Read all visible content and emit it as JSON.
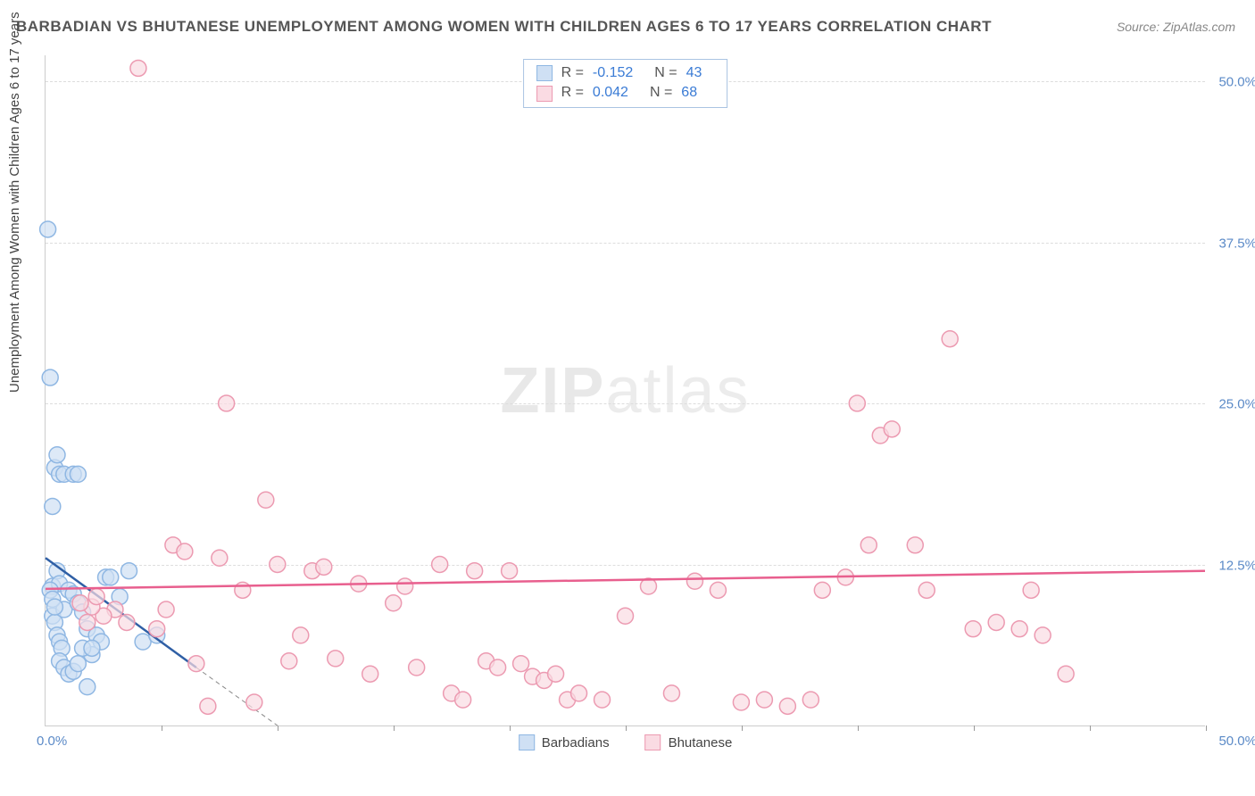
{
  "title": "BARBADIAN VS BHUTANESE UNEMPLOYMENT AMONG WOMEN WITH CHILDREN AGES 6 TO 17 YEARS CORRELATION CHART",
  "source": "Source: ZipAtlas.com",
  "ylabel": "Unemployment Among Women with Children Ages 6 to 17 years",
  "watermark_a": "ZIP",
  "watermark_b": "atlas",
  "chart": {
    "type": "scatter",
    "xlim": [
      0,
      50
    ],
    "ylim": [
      0,
      52
    ],
    "xticks_minor": [
      5,
      10,
      15,
      20,
      25,
      30,
      35,
      40,
      45,
      50
    ],
    "xtick_left": "0.0%",
    "xtick_right": "50.0%",
    "yticks": [
      {
        "v": 12.5,
        "label": "12.5%"
      },
      {
        "v": 25.0,
        "label": "25.0%"
      },
      {
        "v": 37.5,
        "label": "37.5%"
      },
      {
        "v": 50.0,
        "label": "50.0%"
      }
    ],
    "marker_radius": 9,
    "marker_stroke_width": 1.5,
    "trend_line_width": 2.5,
    "series": [
      {
        "name": "Barbadians",
        "fill": "#cfe0f4",
        "stroke": "#8fb7e3",
        "line_color": "#2f5fa5",
        "R": "-0.152",
        "N": "43",
        "trend": {
          "x1": 0,
          "y1": 13.0,
          "x2": 6.5,
          "y2": 4.5
        },
        "trend_ext": {
          "x1": 6.5,
          "y1": 4.5,
          "x2": 10.0,
          "y2": 0.0
        },
        "points": [
          [
            0.1,
            38.5
          ],
          [
            0.2,
            27.0
          ],
          [
            0.3,
            17.0
          ],
          [
            0.3,
            10.8
          ],
          [
            0.5,
            12.0
          ],
          [
            0.6,
            11.0
          ],
          [
            0.4,
            20.0
          ],
          [
            0.5,
            21.0
          ],
          [
            0.6,
            19.5
          ],
          [
            0.8,
            19.5
          ],
          [
            1.2,
            19.5
          ],
          [
            1.4,
            19.5
          ],
          [
            0.3,
            8.5
          ],
          [
            0.4,
            8.0
          ],
          [
            0.5,
            7.0
          ],
          [
            0.6,
            6.5
          ],
          [
            0.7,
            6.0
          ],
          [
            0.8,
            9.0
          ],
          [
            1.0,
            10.5
          ],
          [
            1.2,
            10.2
          ],
          [
            1.4,
            9.5
          ],
          [
            1.6,
            8.8
          ],
          [
            1.8,
            7.5
          ],
          [
            2.0,
            5.5
          ],
          [
            0.6,
            5.0
          ],
          [
            0.8,
            4.5
          ],
          [
            1.0,
            4.0
          ],
          [
            1.2,
            4.2
          ],
          [
            1.4,
            4.8
          ],
          [
            1.6,
            6.0
          ],
          [
            2.2,
            7.0
          ],
          [
            2.4,
            6.5
          ],
          [
            2.6,
            11.5
          ],
          [
            2.8,
            11.5
          ],
          [
            3.2,
            10.0
          ],
          [
            3.6,
            12.0
          ],
          [
            0.2,
            10.5
          ],
          [
            0.3,
            9.8
          ],
          [
            0.4,
            9.2
          ],
          [
            1.8,
            3.0
          ],
          [
            2.0,
            6.0
          ],
          [
            4.2,
            6.5
          ],
          [
            4.8,
            7.0
          ]
        ]
      },
      {
        "name": "Bhutanese",
        "fill": "#fadbe3",
        "stroke": "#ec9ab1",
        "line_color": "#e85f8e",
        "R": "0.042",
        "N": "68",
        "trend": {
          "x1": 0,
          "y1": 10.6,
          "x2": 50,
          "y2": 12.0
        },
        "points": [
          [
            4.0,
            51.0
          ],
          [
            5.5,
            14.0
          ],
          [
            6.0,
            13.5
          ],
          [
            6.5,
            4.8
          ],
          [
            7.0,
            1.5
          ],
          [
            7.5,
            13.0
          ],
          [
            7.8,
            25.0
          ],
          [
            8.5,
            10.5
          ],
          [
            9.0,
            1.8
          ],
          [
            9.5,
            17.5
          ],
          [
            10.0,
            12.5
          ],
          [
            10.5,
            5.0
          ],
          [
            11.0,
            7.0
          ],
          [
            11.5,
            12.0
          ],
          [
            12.0,
            12.3
          ],
          [
            12.5,
            5.2
          ],
          [
            13.5,
            11.0
          ],
          [
            14.0,
            4.0
          ],
          [
            15.0,
            9.5
          ],
          [
            15.5,
            10.8
          ],
          [
            16.0,
            4.5
          ],
          [
            17.0,
            12.5
          ],
          [
            17.5,
            2.5
          ],
          [
            18.0,
            2.0
          ],
          [
            18.5,
            12.0
          ],
          [
            19.0,
            5.0
          ],
          [
            19.5,
            4.5
          ],
          [
            20.0,
            12.0
          ],
          [
            20.5,
            4.8
          ],
          [
            21.0,
            3.8
          ],
          [
            21.5,
            3.5
          ],
          [
            22.0,
            4.0
          ],
          [
            22.5,
            2.0
          ],
          [
            23.0,
            2.5
          ],
          [
            24.0,
            2.0
          ],
          [
            25.0,
            8.5
          ],
          [
            26.0,
            10.8
          ],
          [
            27.0,
            2.5
          ],
          [
            28.0,
            11.2
          ],
          [
            29.0,
            10.5
          ],
          [
            30.0,
            1.8
          ],
          [
            31.0,
            2.0
          ],
          [
            32.0,
            1.5
          ],
          [
            33.0,
            2.0
          ],
          [
            33.5,
            10.5
          ],
          [
            34.5,
            11.5
          ],
          [
            35.0,
            25.0
          ],
          [
            35.5,
            14.0
          ],
          [
            36.0,
            22.5
          ],
          [
            36.5,
            23.0
          ],
          [
            37.5,
            14.0
          ],
          [
            38.0,
            10.5
          ],
          [
            39.0,
            30.0
          ],
          [
            40.0,
            7.5
          ],
          [
            41.0,
            8.0
          ],
          [
            42.0,
            7.5
          ],
          [
            42.5,
            10.5
          ],
          [
            43.0,
            7.0
          ],
          [
            44.0,
            4.0
          ],
          [
            4.8,
            7.5
          ],
          [
            5.2,
            9.0
          ],
          [
            3.5,
            8.0
          ],
          [
            3.0,
            9.0
          ],
          [
            2.5,
            8.5
          ],
          [
            2.0,
            9.2
          ],
          [
            1.5,
            9.5
          ],
          [
            1.8,
            8.0
          ],
          [
            2.2,
            10.0
          ]
        ]
      }
    ]
  },
  "legend_bottom": [
    {
      "label": "Barbadians",
      "fill": "#cfe0f4",
      "stroke": "#8fb7e3"
    },
    {
      "label": "Bhutanese",
      "fill": "#fadbe3",
      "stroke": "#ec9ab1"
    }
  ]
}
